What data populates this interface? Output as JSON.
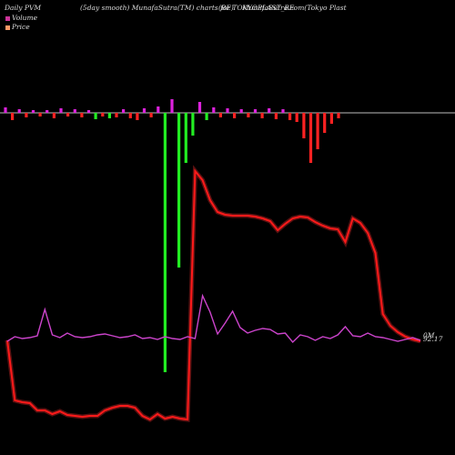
{
  "header": {
    "left": "Daily PVM",
    "title": "(5day smooth) MunafaSutra(TM) charts for TOKYOPLAST_BE",
    "title_overlap": "(BE)",
    "right": "MunafaSutra.com(Tokyo  Plast"
  },
  "legend": [
    {
      "label": "Volume",
      "color": "#cc3399"
    },
    {
      "label": "Price",
      "color": "#ff9966"
    }
  ],
  "chart_data": {
    "type": "line",
    "end_labels": {
      "price": "92.17",
      "pvm": "0M"
    },
    "volume_bars": [
      {
        "value": 6,
        "dir": "up"
      },
      {
        "value": -8,
        "dir": "down"
      },
      {
        "value": 4,
        "dir": "up"
      },
      {
        "value": -5,
        "dir": "down"
      },
      {
        "value": 3,
        "dir": "up"
      },
      {
        "value": -4,
        "dir": "down"
      },
      {
        "value": 3,
        "dir": "up"
      },
      {
        "value": -6,
        "dir": "down"
      },
      {
        "value": 5,
        "dir": "up"
      },
      {
        "value": -4,
        "dir": "down"
      },
      {
        "value": 4,
        "dir": "up"
      },
      {
        "value": -5,
        "dir": "down"
      },
      {
        "value": 3,
        "dir": "up"
      },
      {
        "value": -7,
        "dir": "green"
      },
      {
        "value": -4,
        "dir": "down"
      },
      {
        "value": -6,
        "dir": "green"
      },
      {
        "value": -5,
        "dir": "down"
      },
      {
        "value": 4,
        "dir": "up"
      },
      {
        "value": -6,
        "dir": "down"
      },
      {
        "value": -8,
        "dir": "down"
      },
      {
        "value": 5,
        "dir": "up"
      },
      {
        "value": -5,
        "dir": "down"
      },
      {
        "value": 7,
        "dir": "up"
      },
      {
        "value": -285,
        "dir": "green"
      },
      {
        "value": 15,
        "dir": "up"
      },
      {
        "value": -170,
        "dir": "green"
      },
      {
        "value": -55,
        "dir": "green"
      },
      {
        "value": -25,
        "dir": "green"
      },
      {
        "value": 12,
        "dir": "up"
      },
      {
        "value": -8,
        "dir": "green"
      },
      {
        "value": 6,
        "dir": "up"
      },
      {
        "value": -5,
        "dir": "down"
      },
      {
        "value": 5,
        "dir": "up"
      },
      {
        "value": -6,
        "dir": "down"
      },
      {
        "value": 4,
        "dir": "up"
      },
      {
        "value": -5,
        "dir": "down"
      },
      {
        "value": 4,
        "dir": "up"
      },
      {
        "value": -6,
        "dir": "down"
      },
      {
        "value": 5,
        "dir": "up"
      },
      {
        "value": -7,
        "dir": "down"
      },
      {
        "value": 4,
        "dir": "up"
      },
      {
        "value": -8,
        "dir": "down"
      },
      {
        "value": -10,
        "dir": "down"
      },
      {
        "value": -28,
        "dir": "down"
      },
      {
        "value": -55,
        "dir": "down"
      },
      {
        "value": -40,
        "dir": "down"
      },
      {
        "value": -22,
        "dir": "down"
      },
      {
        "value": -12,
        "dir": "down"
      },
      {
        "value": -6,
        "dir": "down"
      }
    ],
    "price_series": [
      374,
      440,
      442,
      443,
      451,
      451,
      455,
      452,
      456,
      457,
      458,
      457,
      457,
      451,
      448,
      446,
      446,
      448,
      457,
      461,
      455,
      460,
      458,
      460,
      461,
      188,
      198,
      220,
      233,
      236,
      237,
      237,
      237,
      238,
      240,
      243,
      253,
      246,
      240,
      238,
      239,
      244,
      248,
      251,
      252,
      266,
      240,
      245,
      256,
      278,
      345,
      358,
      365,
      370,
      373,
      375
    ],
    "pvm_series": [
      375,
      370,
      372,
      371,
      369,
      340,
      368,
      371,
      366,
      370,
      371,
      370,
      368,
      367,
      369,
      371,
      370,
      368,
      372,
      371,
      373,
      370,
      372,
      373,
      370,
      372,
      325,
      343,
      367,
      355,
      342,
      360,
      366,
      363,
      361,
      362,
      367,
      366,
      376,
      368,
      370,
      374,
      370,
      372,
      368,
      359,
      369,
      370,
      366,
      370,
      371,
      373,
      375,
      373,
      371,
      374
    ]
  }
}
